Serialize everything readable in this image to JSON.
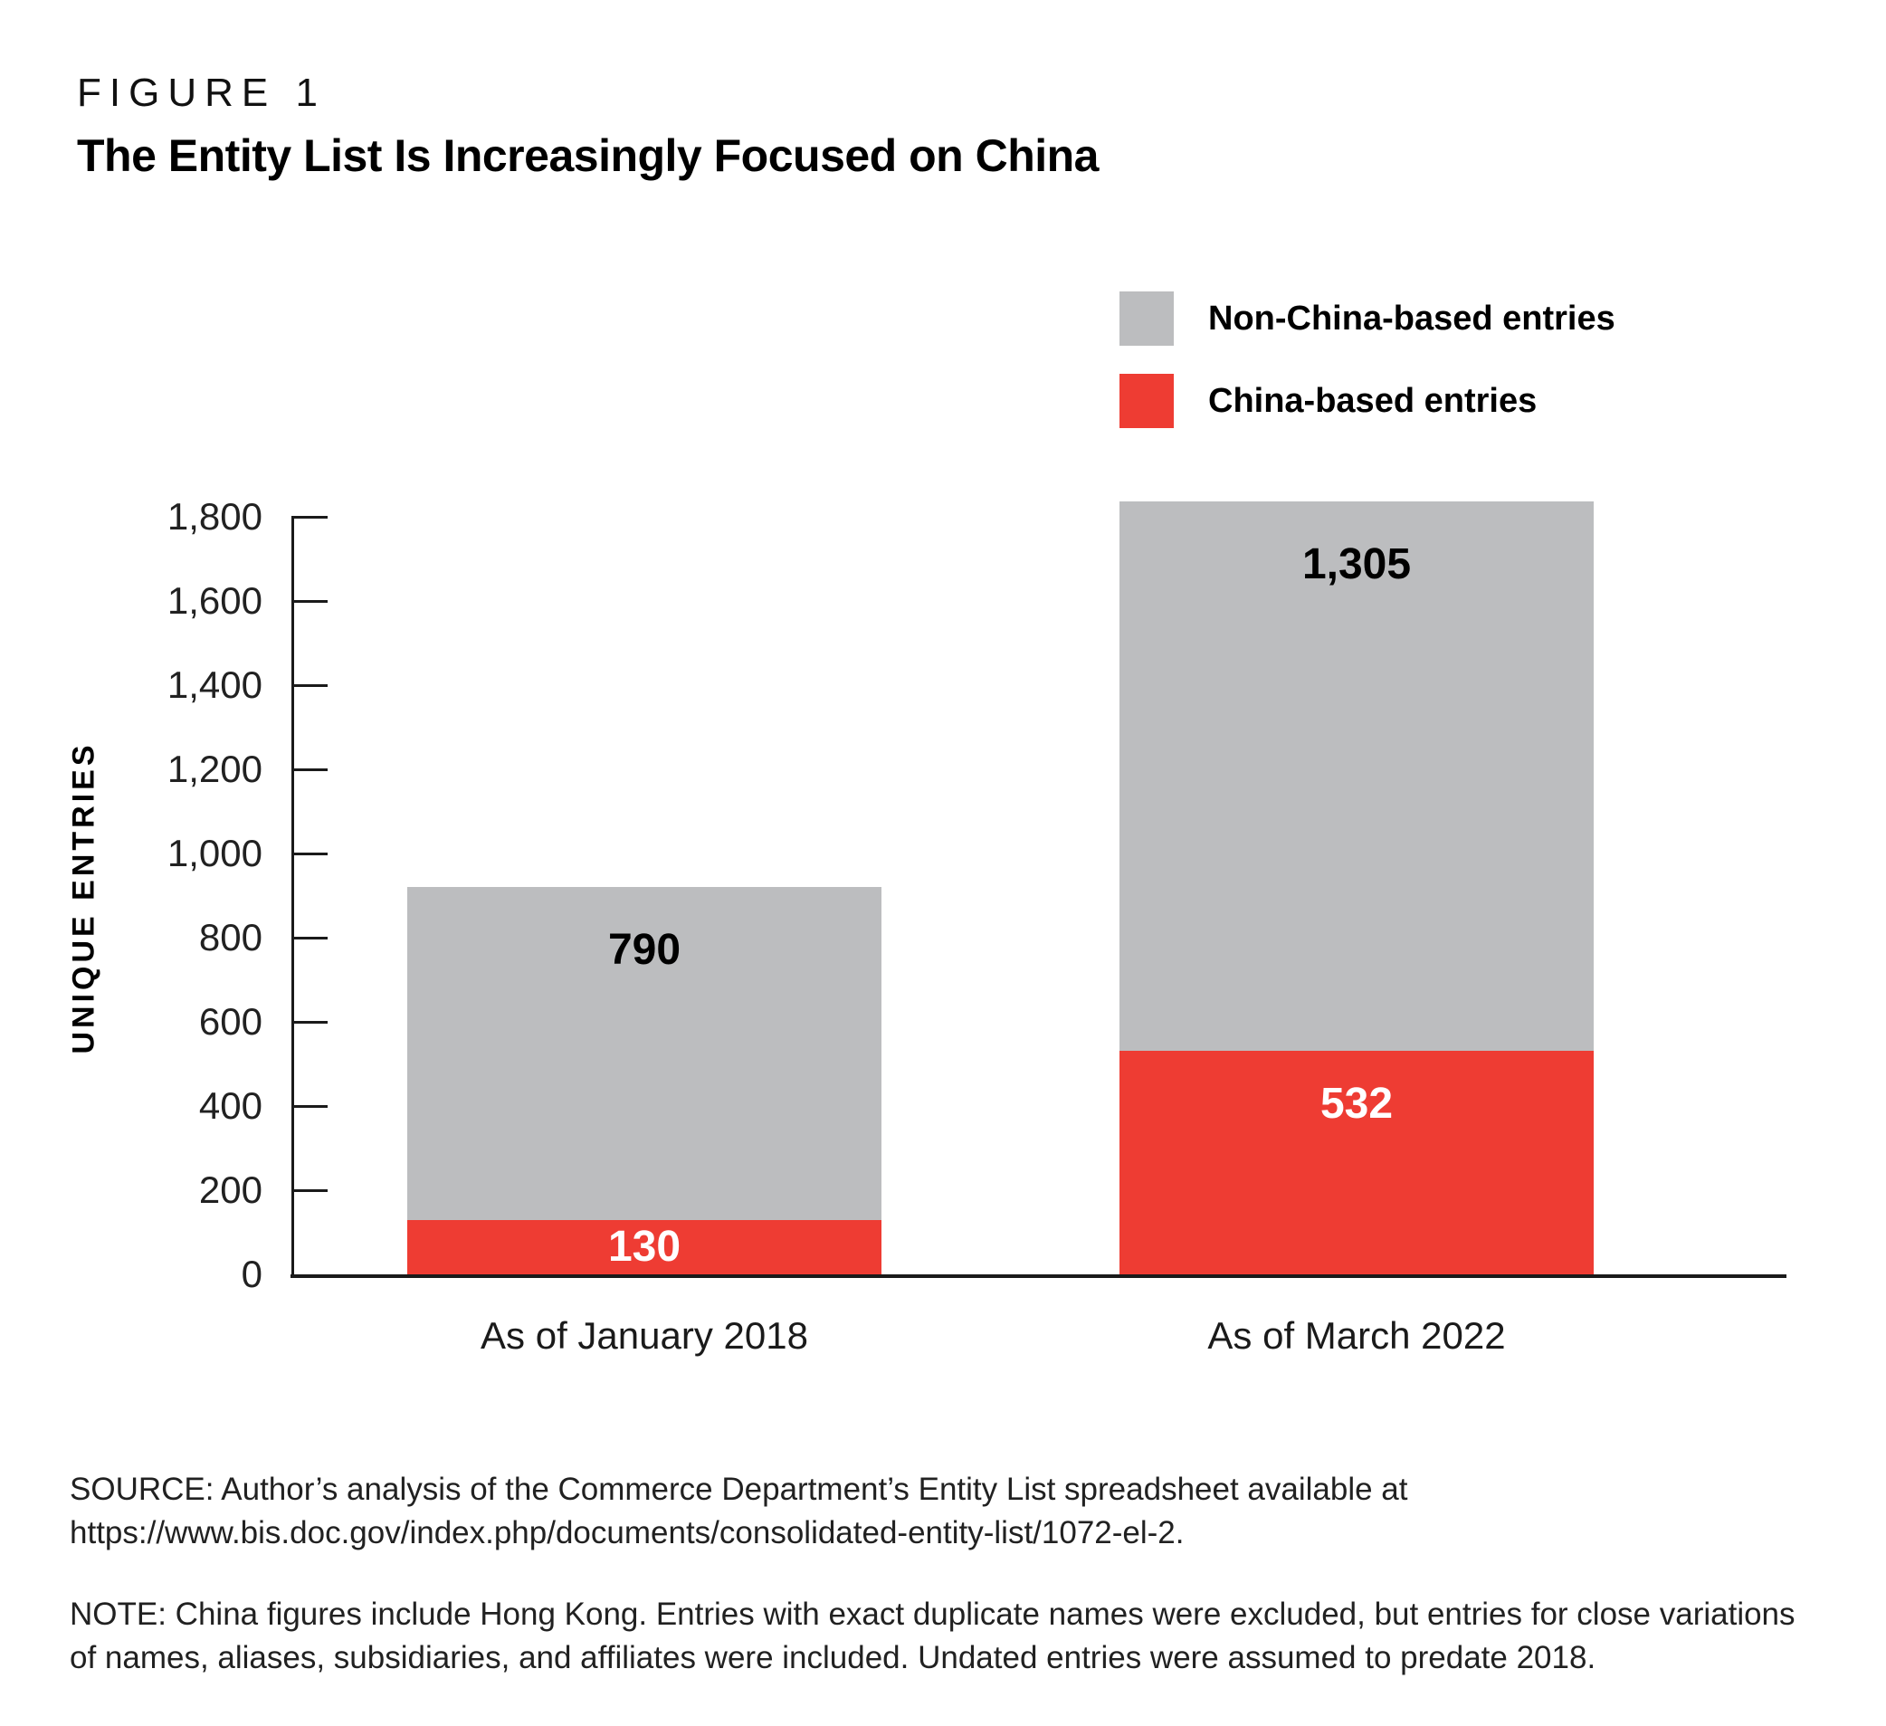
{
  "figure_label": "FIGURE 1",
  "title": "The Entity List Is Increasingly Focused on China",
  "legend": {
    "items": [
      {
        "id": "non_china",
        "label": "Non-China-based entries",
        "color": "#bcbdbf"
      },
      {
        "id": "china",
        "label": "China-based entries",
        "color": "#ee3c33"
      }
    ]
  },
  "chart_data": {
    "type": "bar",
    "stacked": true,
    "title": "The Entity List Is Increasingly Focused on China",
    "categories": [
      "As of January 2018",
      "As of March 2022"
    ],
    "series": [
      {
        "name": "China-based entries",
        "color": "#ee3c33",
        "values": [
          130,
          532
        ],
        "value_labels": [
          "130",
          "532"
        ],
        "label_color": "#ffffff"
      },
      {
        "name": "Non-China-based entries",
        "color": "#bcbdbf",
        "values": [
          790,
          1305
        ],
        "value_labels": [
          "790",
          "1,305"
        ],
        "label_color": "#000000"
      }
    ],
    "totals": [
      920,
      1837
    ],
    "ylabel": "UNIQUE ENTRIES",
    "ylim": [
      0,
      1800
    ],
    "ytick_interval": 200,
    "ytick_labels": [
      "0",
      "200",
      "400",
      "600",
      "800",
      "1,000",
      "1,200",
      "1,400",
      "1,600",
      "1,800"
    ],
    "legend_position": "top-right",
    "grid": false
  },
  "source_lines": [
    "SOURCE: Author’s analysis of the Commerce Department’s Entity List spreadsheet available at",
    "https://www.bis.doc.gov/index.php/documents/consolidated-entity-list/1072-el-2."
  ],
  "note_lines": [
    "NOTE: China figures include Hong Kong. Entries with exact duplicate names were excluded, but entries for close variations",
    "of names, aliases, subsidiaries, and affiliates were included. Undated entries were assumed to predate 2018."
  ]
}
